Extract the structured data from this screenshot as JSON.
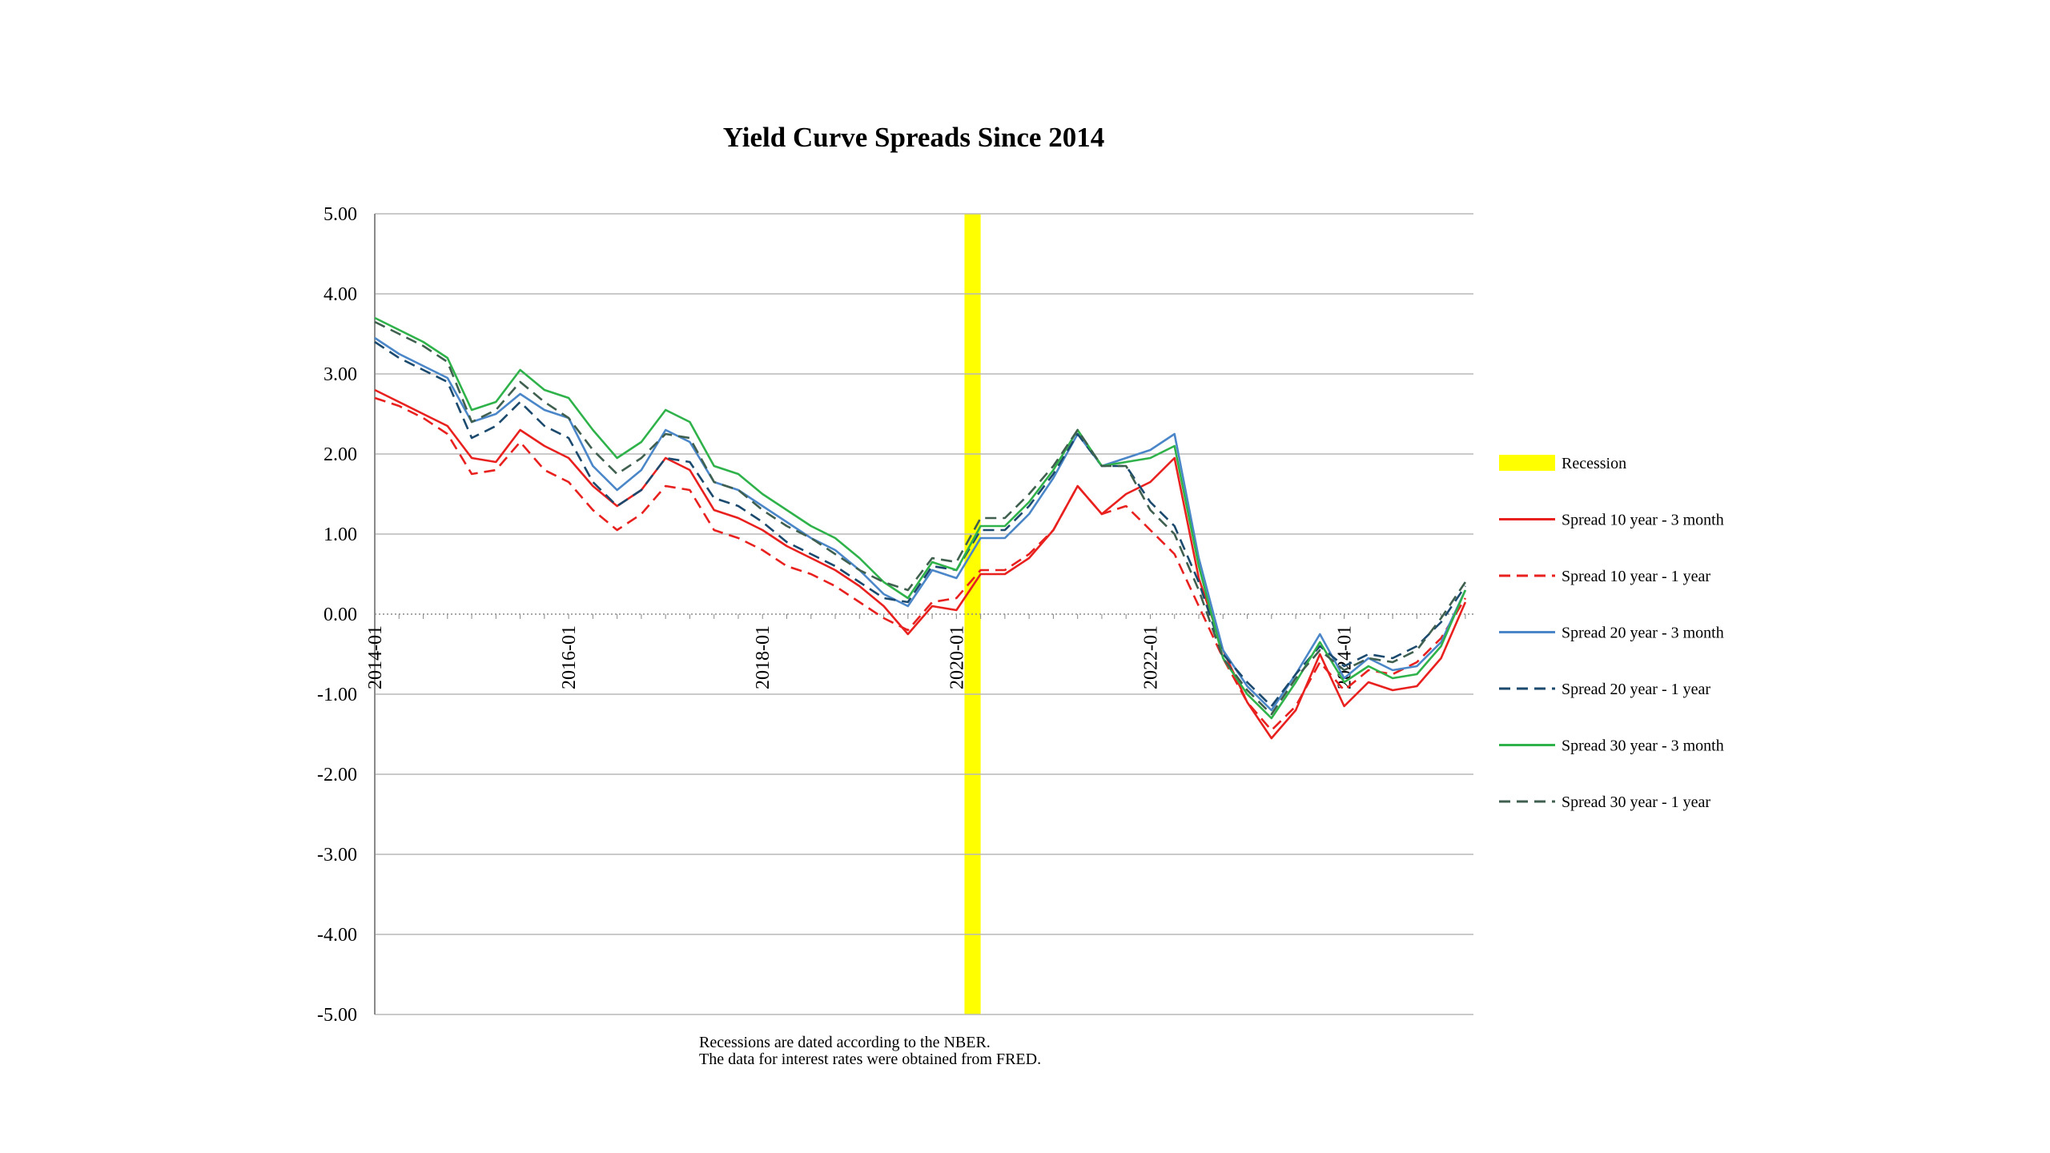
{
  "chart_data": {
    "type": "line",
    "title": "Yield Curve Spreads Since 2014",
    "xlabel": "",
    "ylabel": "",
    "ylim": [
      -5,
      5
    ],
    "xlim": [
      "2014-01",
      "2025-05"
    ],
    "y_ticks": [
      "5.00",
      "4.00",
      "3.00",
      "2.00",
      "1.00",
      "0.00",
      "-1.00",
      "-2.00",
      "-3.00",
      "-4.00",
      "-5.00"
    ],
    "x_ticks": [
      "2014-01",
      "2016-01",
      "2018-01",
      "2020-01",
      "2022-01",
      "2024-01"
    ],
    "grid": "horizontal",
    "legend_position": "right",
    "recessions": [
      {
        "name": "Recession",
        "start": "2020-02",
        "end": "2020-04",
        "color": "#ffff00"
      }
    ],
    "notes": [
      "Recessions are dated according to the NBER.",
      "The data for interest rates were obtained from FRED."
    ],
    "x": [
      "2014-01",
      "2014-04",
      "2014-07",
      "2014-10",
      "2015-01",
      "2015-04",
      "2015-07",
      "2015-10",
      "2016-01",
      "2016-04",
      "2016-07",
      "2016-10",
      "2017-01",
      "2017-04",
      "2017-07",
      "2017-10",
      "2018-01",
      "2018-04",
      "2018-07",
      "2018-10",
      "2019-01",
      "2019-04",
      "2019-07",
      "2019-10",
      "2020-01",
      "2020-04",
      "2020-07",
      "2020-10",
      "2021-01",
      "2021-04",
      "2021-07",
      "2021-10",
      "2022-01",
      "2022-04",
      "2022-07",
      "2022-10",
      "2023-01",
      "2023-04",
      "2023-07",
      "2023-10",
      "2024-01",
      "2024-04",
      "2024-07",
      "2024-10",
      "2025-01",
      "2025-04"
    ],
    "series": [
      {
        "name": "Spread 10 year - 3 month",
        "color": "#e8211f",
        "dash": "solid",
        "values": [
          2.8,
          2.65,
          2.5,
          2.35,
          1.95,
          1.9,
          2.3,
          2.1,
          1.95,
          1.6,
          1.35,
          1.55,
          1.95,
          1.8,
          1.3,
          1.2,
          1.05,
          0.85,
          0.7,
          0.55,
          0.35,
          0.1,
          -0.25,
          0.1,
          0.05,
          0.5,
          0.5,
          0.7,
          1.05,
          1.6,
          1.25,
          1.5,
          1.65,
          1.95,
          0.45,
          -0.45,
          -1.1,
          -1.55,
          -1.2,
          -0.5,
          -1.15,
          -0.85,
          -0.95,
          -0.9,
          -0.55,
          0.15
        ]
      },
      {
        "name": "Spread 10 year - 1 year",
        "color": "#e8211f",
        "dash": "dashed",
        "values": [
          2.7,
          2.6,
          2.45,
          2.25,
          1.75,
          1.8,
          2.15,
          1.8,
          1.65,
          1.3,
          1.05,
          1.25,
          1.6,
          1.55,
          1.05,
          0.95,
          0.8,
          0.6,
          0.5,
          0.35,
          0.15,
          -0.05,
          -0.2,
          0.15,
          0.2,
          0.55,
          0.55,
          0.75,
          1.05,
          1.6,
          1.25,
          1.35,
          1.05,
          0.75,
          0.1,
          -0.55,
          -1.1,
          -1.45,
          -1.15,
          -0.6,
          -0.95,
          -0.7,
          -0.75,
          -0.6,
          -0.3,
          0.2
        ]
      },
      {
        "name": "Spread 20 year - 3 month",
        "color": "#4a86c8",
        "dash": "solid",
        "values": [
          3.45,
          3.25,
          3.1,
          2.95,
          2.4,
          2.5,
          2.75,
          2.55,
          2.45,
          1.85,
          1.55,
          1.8,
          2.3,
          2.15,
          1.65,
          1.55,
          1.35,
          1.15,
          0.95,
          0.8,
          0.55,
          0.25,
          0.1,
          0.55,
          0.45,
          0.95,
          0.95,
          1.25,
          1.7,
          2.25,
          1.85,
          1.95,
          2.05,
          2.25,
          0.7,
          -0.45,
          -0.9,
          -1.2,
          -0.75,
          -0.25,
          -0.8,
          -0.55,
          -0.7,
          -0.65,
          -0.35,
          0.3
        ]
      },
      {
        "name": "Spread 20 year - 1 year",
        "color": "#1b4a6e",
        "dash": "dashed",
        "values": [
          3.4,
          3.2,
          3.05,
          2.9,
          2.2,
          2.35,
          2.65,
          2.35,
          2.2,
          1.65,
          1.35,
          1.55,
          1.95,
          1.9,
          1.45,
          1.35,
          1.15,
          0.9,
          0.75,
          0.6,
          0.4,
          0.2,
          0.15,
          0.6,
          0.55,
          1.05,
          1.05,
          1.35,
          1.75,
          2.25,
          1.85,
          1.85,
          1.4,
          1.1,
          0.4,
          -0.5,
          -0.85,
          -1.15,
          -0.75,
          -0.4,
          -0.65,
          -0.5,
          -0.55,
          -0.4,
          -0.1,
          0.35
        ]
      },
      {
        "name": "Spread 30 year - 3 month",
        "color": "#2fb24a",
        "dash": "solid",
        "values": [
          3.7,
          3.55,
          3.4,
          3.2,
          2.55,
          2.65,
          3.05,
          2.8,
          2.7,
          2.3,
          1.95,
          2.15,
          2.55,
          2.4,
          1.85,
          1.75,
          1.5,
          1.3,
          1.1,
          0.95,
          0.7,
          0.4,
          0.2,
          0.65,
          0.55,
          1.1,
          1.1,
          1.4,
          1.8,
          2.3,
          1.85,
          1.9,
          1.95,
          2.1,
          0.6,
          -0.55,
          -1.0,
          -1.3,
          -0.85,
          -0.35,
          -0.85,
          -0.65,
          -0.8,
          -0.75,
          -0.4,
          0.3
        ]
      },
      {
        "name": "Spread 30 year - 1 year",
        "color": "#3f5f4f",
        "dash": "dashed",
        "values": [
          3.65,
          3.5,
          3.35,
          3.15,
          2.4,
          2.55,
          2.9,
          2.65,
          2.45,
          2.05,
          1.75,
          1.95,
          2.25,
          2.2,
          1.65,
          1.55,
          1.3,
          1.1,
          0.95,
          0.75,
          0.55,
          0.4,
          0.3,
          0.7,
          0.65,
          1.2,
          1.2,
          1.5,
          1.85,
          2.3,
          1.85,
          1.85,
          1.3,
          1.0,
          0.3,
          -0.55,
          -0.95,
          -1.25,
          -0.8,
          -0.45,
          -0.7,
          -0.55,
          -0.6,
          -0.45,
          -0.05,
          0.4
        ]
      }
    ]
  }
}
